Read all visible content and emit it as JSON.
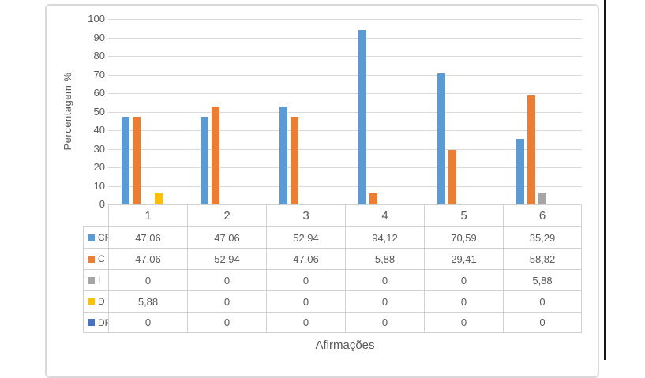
{
  "chart_data": {
    "type": "bar",
    "title": "",
    "xlabel": "Afirmações",
    "ylabel": "Percentagem %",
    "categories": [
      "1",
      "2",
      "3",
      "4",
      "5",
      "6"
    ],
    "series": [
      {
        "name": "CF",
        "color": "#5B9BD5",
        "values": [
          47.06,
          47.06,
          52.94,
          94.12,
          70.59,
          35.29
        ],
        "display": [
          "47,06",
          "47,06",
          "52,94",
          "94,12",
          "70,59",
          "35,29"
        ]
      },
      {
        "name": "C",
        "color": "#ED7D31",
        "values": [
          47.06,
          52.94,
          47.06,
          5.88,
          29.41,
          58.82
        ],
        "display": [
          "47,06",
          "52,94",
          "47,06",
          "5,88",
          "29,41",
          "58,82"
        ]
      },
      {
        "name": "I",
        "color": "#A5A5A5",
        "values": [
          0,
          0,
          0,
          0,
          0,
          5.88
        ],
        "display": [
          "0",
          "0",
          "0",
          "0",
          "0",
          "5,88"
        ]
      },
      {
        "name": "D",
        "color": "#FFC000",
        "values": [
          5.88,
          0,
          0,
          0,
          0,
          0
        ],
        "display": [
          "5,88",
          "0",
          "0",
          "0",
          "0",
          "0"
        ]
      },
      {
        "name": "DF",
        "color": "#4472C4",
        "values": [
          0,
          0,
          0,
          0,
          0,
          0
        ],
        "display": [
          "0",
          "0",
          "0",
          "0",
          "0",
          "0"
        ]
      }
    ],
    "yticks": [
      "100",
      "90",
      "80",
      "70",
      "60",
      "50",
      "40",
      "30",
      "20",
      "10",
      "0"
    ],
    "ylim": [
      0,
      100
    ],
    "ytick_step": 10,
    "grid": true,
    "legend_position": "data-table-left-column"
  }
}
